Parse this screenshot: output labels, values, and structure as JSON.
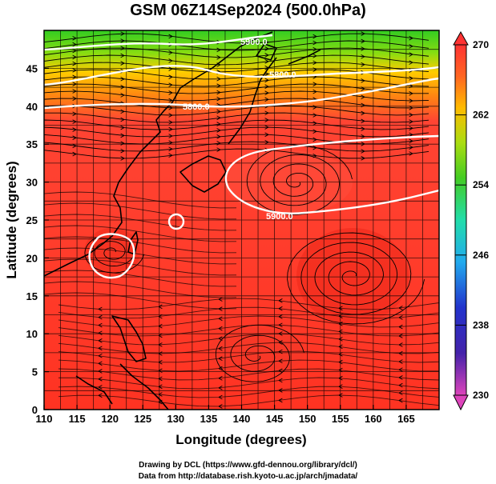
{
  "title": "GSM 06Z14Sep2024 (500.0hPa)",
  "axes": {
    "xlabel": "Longitude (degrees)",
    "ylabel": "Latitude  (degrees)",
    "x_ticks": [
      "110",
      "115",
      "120",
      "125",
      "130",
      "135",
      "140",
      "145",
      "150",
      "155",
      "160",
      "165"
    ],
    "y_ticks": [
      "0",
      "5",
      "10",
      "15",
      "20",
      "25",
      "30",
      "35",
      "40",
      "45"
    ],
    "xlim": [
      110,
      170
    ],
    "ylim": [
      0,
      50
    ]
  },
  "colorbar": {
    "labels": [
      "270",
      "262",
      "254",
      "246",
      "238",
      "230"
    ],
    "range": [
      230,
      270
    ],
    "colors": [
      "#cc33aa",
      "#3344cc",
      "#22bbee",
      "#44cc33",
      "#ffaa00",
      "#ff3322"
    ]
  },
  "contour_labels": [
    "5900.0",
    "5900.0",
    "5800.0",
    "5800.0"
  ],
  "credits": {
    "line1": "Drawing by DCL (https://www.gfd-dennou.org/library/dcl/)",
    "line2": "Data from http://database.rish.kyoto-u.ac.jp/arch/jmadata/"
  },
  "field_colors": {
    "north": "#44cc22",
    "transition": "#ffcc00",
    "south": "#ff4433",
    "contour": "#ffffff",
    "coast": "#000000"
  }
}
